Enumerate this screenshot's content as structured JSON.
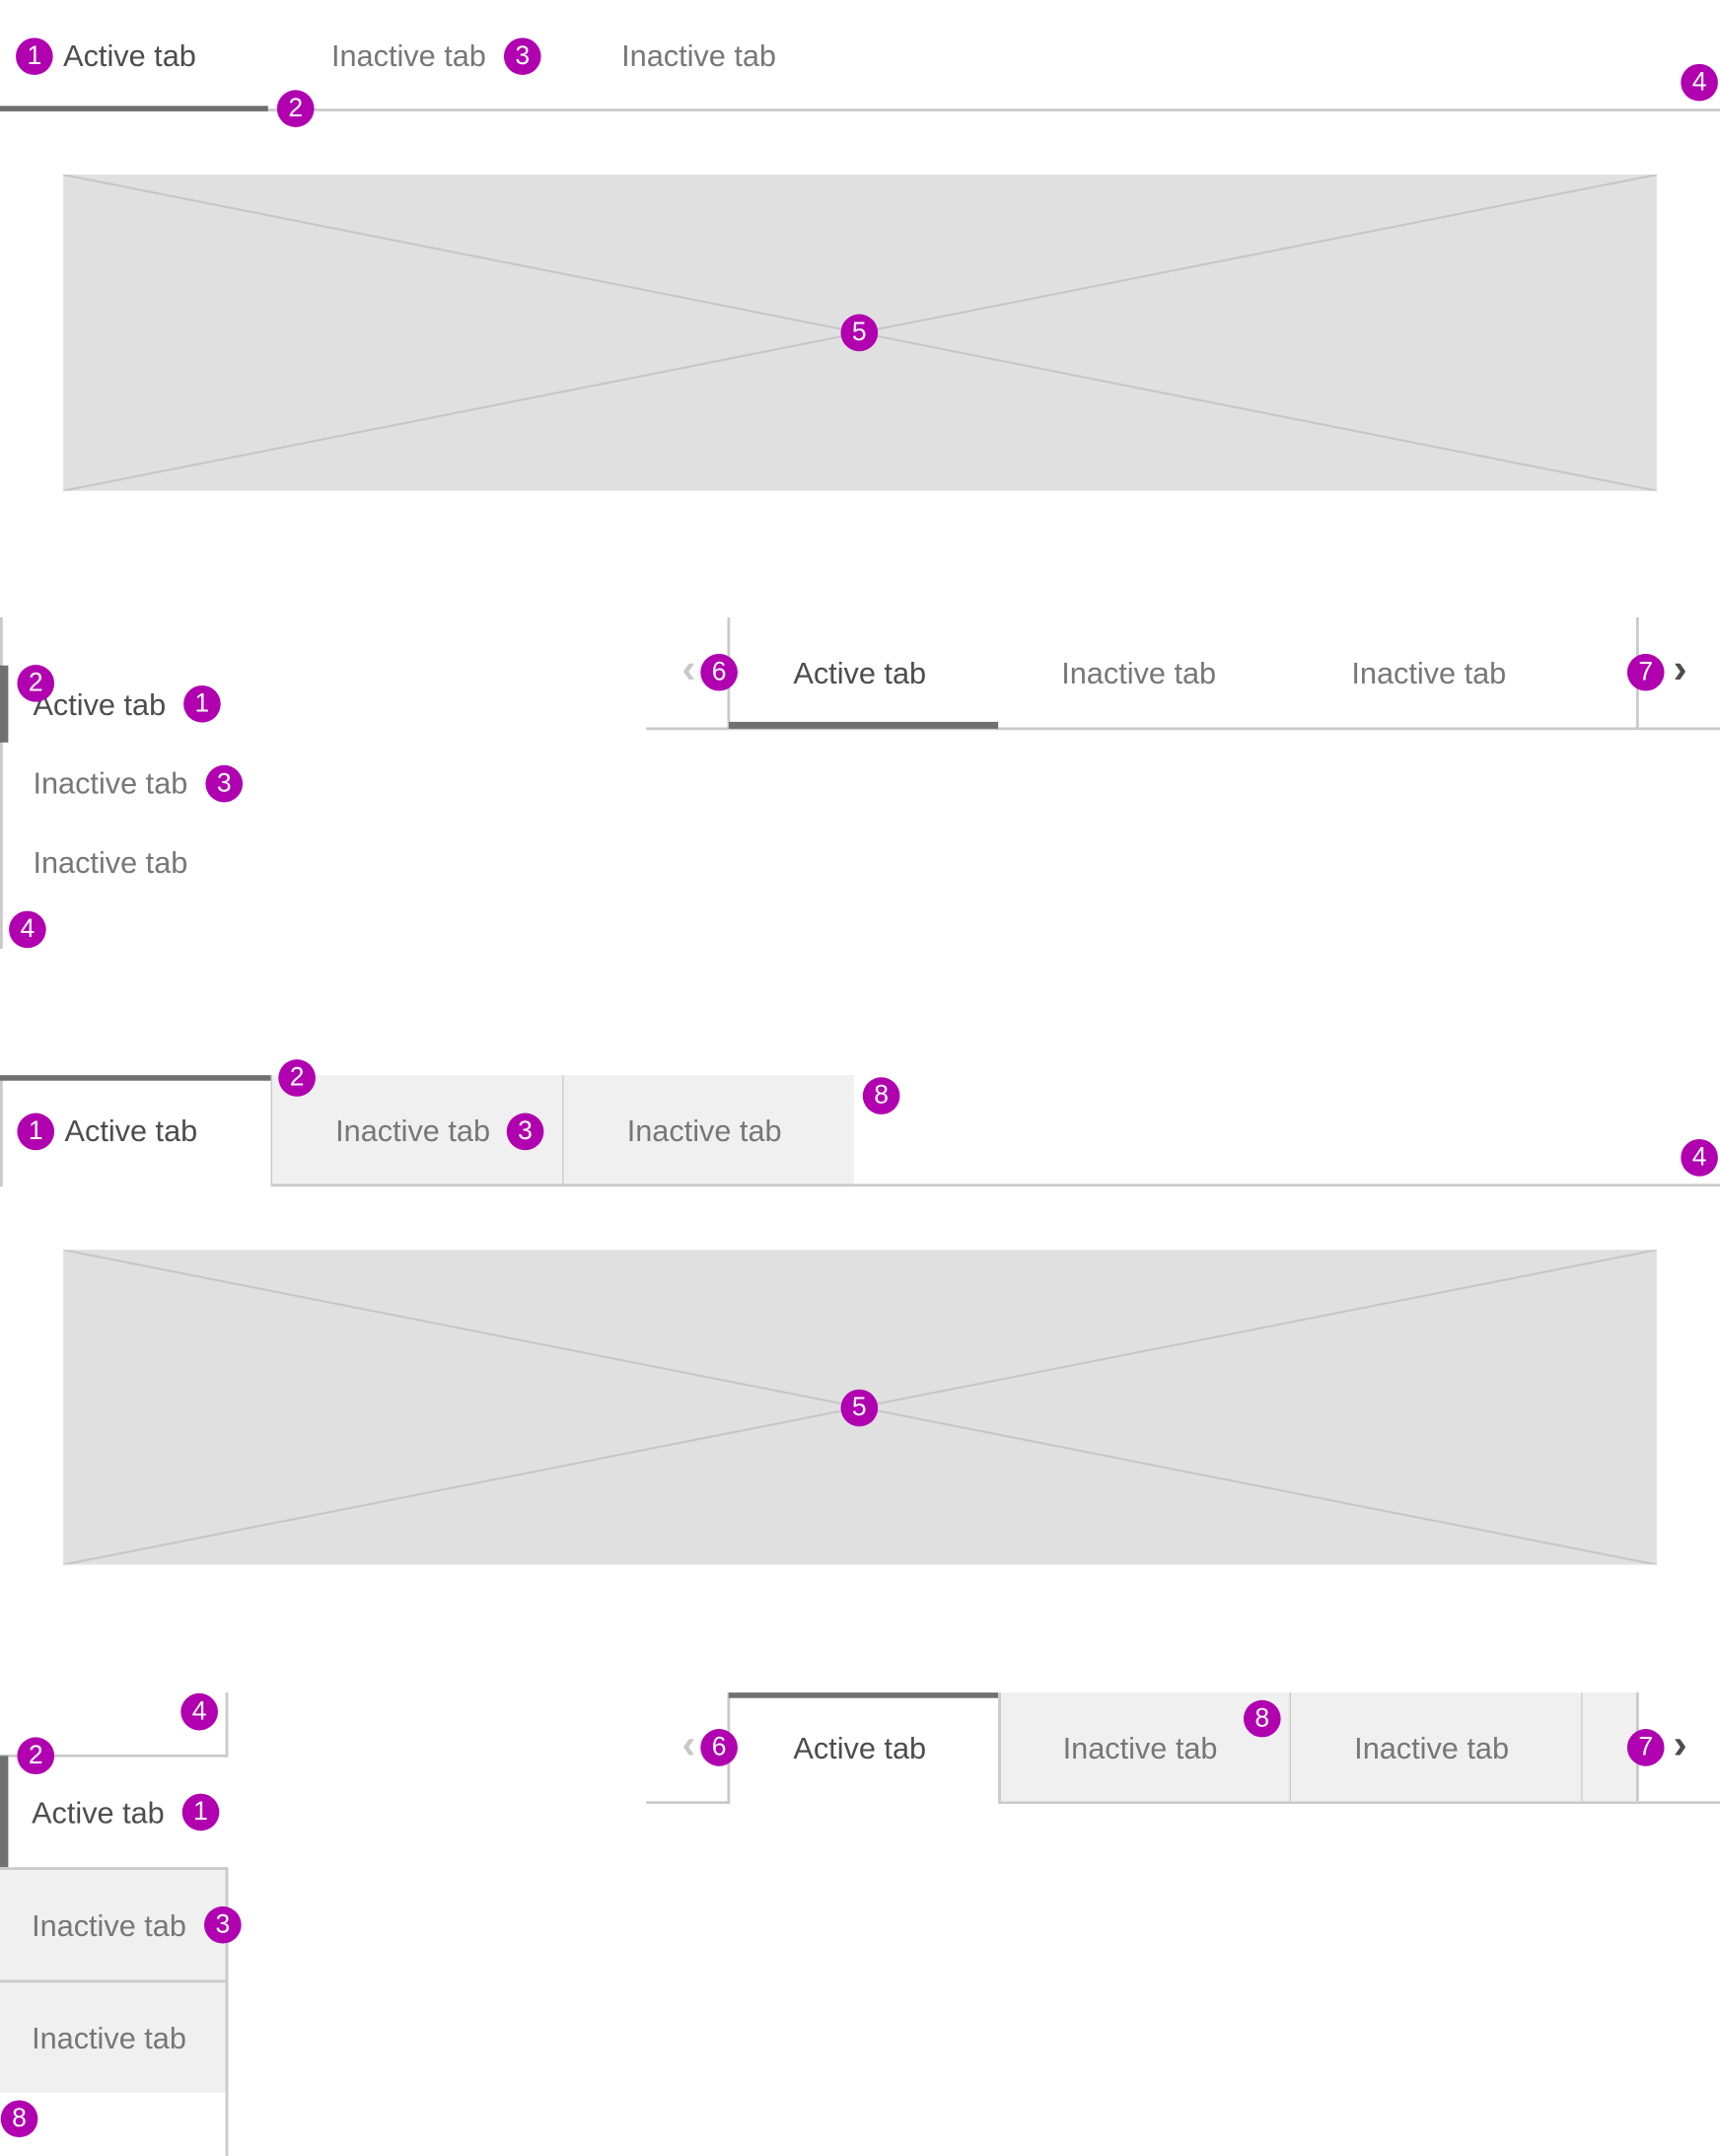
{
  "labels": {
    "active": "Active tab",
    "inactive": "Inactive tab"
  },
  "badges": {
    "b1": "1",
    "b2": "2",
    "b3": "3",
    "b4": "4",
    "b5": "5",
    "b6": "6",
    "b7": "7",
    "b8": "8"
  },
  "icons": {
    "scroll_left": "chevron-left-icon",
    "scroll_right": "chevron-right-icon",
    "placeholder": "image-placeholder-icon"
  },
  "glyphs": {
    "left": "‹",
    "right": "›"
  },
  "colors": {
    "badge": "#b000b0",
    "active_indicator": "#707070",
    "border": "#cacaca",
    "inactive_bg": "#f0f0f0",
    "placeholder_bg": "#e0e0e0"
  }
}
